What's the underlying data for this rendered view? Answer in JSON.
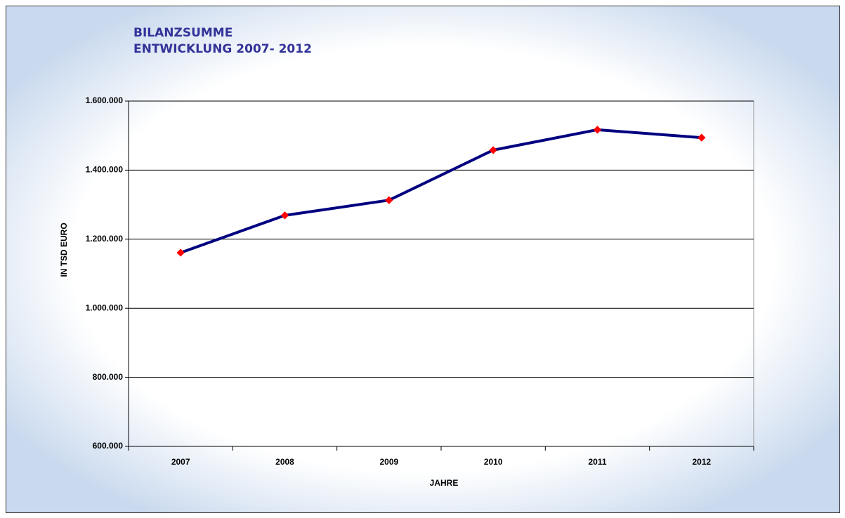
{
  "chart_data": {
    "type": "line",
    "title": "BILANZSUMME",
    "subtitle": "ENTWICKLUNG 2007- 2012",
    "x_label": "JAHRE",
    "y_label": "IN TSD EURO",
    "categories": [
      "2007",
      "2008",
      "2009",
      "2010",
      "2011",
      "2012"
    ],
    "series": [
      {
        "name": "Bilanzsumme",
        "color": "#000080",
        "marker_color": "#ff0000",
        "values": [
          1161000,
          1269000,
          1313000,
          1458000,
          1517000,
          1494000
        ]
      }
    ],
    "ylim": [
      600000,
      1600000
    ],
    "yticks": [
      {
        "value": 600000,
        "label": "600.000"
      },
      {
        "value": 800000,
        "label": "800.000"
      },
      {
        "value": 1000000,
        "label": "1.000.000"
      },
      {
        "value": 1200000,
        "label": "1.200.000"
      },
      {
        "value": 1400000,
        "label": "1.400.000"
      },
      {
        "value": 1600000,
        "label": "1.600.000"
      }
    ],
    "grid": true,
    "legend": false
  }
}
